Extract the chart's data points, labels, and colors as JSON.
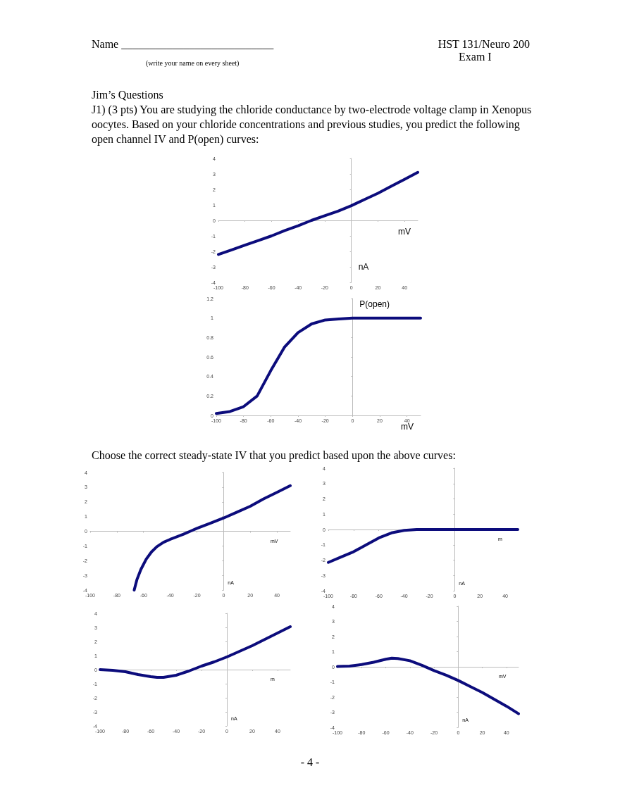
{
  "chart_data": [
    {
      "type": "line",
      "xlabel": "mV",
      "ylabel": "nA",
      "color": "#0c0c7c",
      "xlim": [
        -100,
        50
      ],
      "ylim": [
        -4,
        4
      ],
      "xticks": [
        -100,
        -80,
        -60,
        -40,
        -20,
        0,
        20,
        40
      ],
      "yticks": [
        -4,
        -3,
        -2,
        -1,
        0,
        1,
        2,
        3,
        4
      ],
      "x": [
        -100,
        -90,
        -80,
        -70,
        -60,
        -50,
        -40,
        -30,
        -20,
        -10,
        0,
        10,
        20,
        30,
        40,
        50
      ],
      "values": [
        -2.2,
        -1.9,
        -1.6,
        -1.3,
        -1.0,
        -0.65,
        -0.35,
        0.0,
        0.3,
        0.6,
        0.95,
        1.35,
        1.75,
        2.2,
        2.65,
        3.1
      ],
      "annotations": [
        "Name ___________________________",
        "(write your name on every sheet)",
        "HST 131/Neuro 200",
        "Exam I",
        "Jim’s Questions",
        "J1) (3 pts)  You are studying the chloride conductance by two-electrode voltage clamp in Xenopus oocytes. Based on your chloride concentrations and previous studies, you predict the following open channel IV and P(open) curves:"
      ]
    },
    {
      "type": "line",
      "xlabel": "mV",
      "ylabel": "P(open)",
      "color": "#0c0c7c",
      "xlim": [
        -100,
        50
      ],
      "ylim": [
        0,
        1.2
      ],
      "xticks": [
        -100,
        -80,
        -60,
        -40,
        -20,
        0,
        20,
        40
      ],
      "yticks": [
        0,
        0.2,
        0.4,
        0.6,
        0.8,
        1,
        1.2
      ],
      "x": [
        -100,
        -90,
        -80,
        -70,
        -60,
        -50,
        -40,
        -30,
        -20,
        -10,
        0,
        20,
        40,
        50
      ],
      "values": [
        0.02,
        0.04,
        0.09,
        0.2,
        0.46,
        0.7,
        0.85,
        0.94,
        0.98,
        0.99,
        1,
        1,
        1,
        1
      ]
    },
    {
      "type": "line",
      "xlabel": "mV",
      "ylabel": "nA",
      "color": "#0c0c7c",
      "xlim": [
        -100,
        50
      ],
      "ylim": [
        -4,
        4
      ],
      "xticks": [
        -100,
        -80,
        -60,
        -40,
        -20,
        0,
        20,
        40
      ],
      "yticks": [
        -4,
        -3,
        -2,
        -1,
        0,
        1,
        2,
        3,
        4
      ],
      "x": [
        -67,
        -65,
        -62,
        -58,
        -54,
        -50,
        -45,
        -40,
        -30,
        -25,
        -20,
        -10,
        0,
        10,
        20,
        30,
        40,
        50
      ],
      "values": [
        -4,
        -3.3,
        -2.6,
        -1.9,
        -1.4,
        -1.05,
        -0.75,
        -0.55,
        -0.2,
        0,
        0.2,
        0.55,
        0.9,
        1.3,
        1.7,
        2.2,
        2.65,
        3.1
      ],
      "annotations": [
        "Choose the correct steady-state IV that you predict based upon the above curves:"
      ]
    },
    {
      "type": "line",
      "xlabel": "m",
      "ylabel": "nA",
      "color": "#0c0c7c",
      "xlim": [
        -100,
        50
      ],
      "ylim": [
        -4,
        4
      ],
      "xticks": [
        -100,
        -80,
        -60,
        -40,
        -20,
        0,
        20,
        40
      ],
      "yticks": [
        -4,
        -3,
        -2,
        -1,
        0,
        1,
        2,
        3,
        4
      ],
      "x": [
        -100,
        -90,
        -80,
        -70,
        -60,
        -50,
        -40,
        -30,
        0,
        50
      ],
      "values": [
        -2.15,
        -1.8,
        -1.45,
        -1.0,
        -0.55,
        -0.22,
        -0.06,
        0,
        0,
        0
      ]
    },
    {
      "type": "line",
      "xlabel": "m",
      "ylabel": "nA",
      "color": "#0c0c7c",
      "xlim": [
        -100,
        50
      ],
      "ylim": [
        -4,
        4
      ],
      "xticks": [
        -100,
        -80,
        -60,
        -40,
        -20,
        0,
        20,
        40
      ],
      "yticks": [
        -4,
        -3,
        -2,
        -1,
        0,
        1,
        2,
        3,
        4
      ],
      "x": [
        -100,
        -90,
        -80,
        -70,
        -60,
        -55,
        -50,
        -40,
        -30,
        -20,
        -10,
        0,
        10,
        20,
        30,
        40,
        50
      ],
      "values": [
        0,
        -0.05,
        -0.15,
        -0.35,
        -0.5,
        -0.55,
        -0.55,
        -0.4,
        -0.1,
        0.25,
        0.55,
        0.9,
        1.3,
        1.7,
        2.15,
        2.6,
        3.05
      ]
    },
    {
      "type": "line",
      "xlabel": "mV",
      "ylabel": "nA",
      "color": "#0c0c7c",
      "xlim": [
        -100,
        50
      ],
      "ylim": [
        -4,
        4
      ],
      "xticks": [
        -100,
        -80,
        -60,
        -40,
        -20,
        0,
        20,
        40
      ],
      "yticks": [
        -4,
        -3,
        -2,
        -1,
        0,
        1,
        2,
        3,
        4
      ],
      "x": [
        -100,
        -90,
        -80,
        -70,
        -60,
        -55,
        -50,
        -40,
        -30,
        -20,
        -10,
        0,
        10,
        20,
        30,
        40,
        50
      ],
      "values": [
        0.02,
        0.05,
        0.15,
        0.3,
        0.5,
        0.57,
        0.55,
        0.4,
        0.1,
        -0.25,
        -0.55,
        -0.9,
        -1.3,
        -1.7,
        -2.15,
        -2.6,
        -3.1
      ],
      "annotations": [
        "- 4 -"
      ]
    }
  ]
}
